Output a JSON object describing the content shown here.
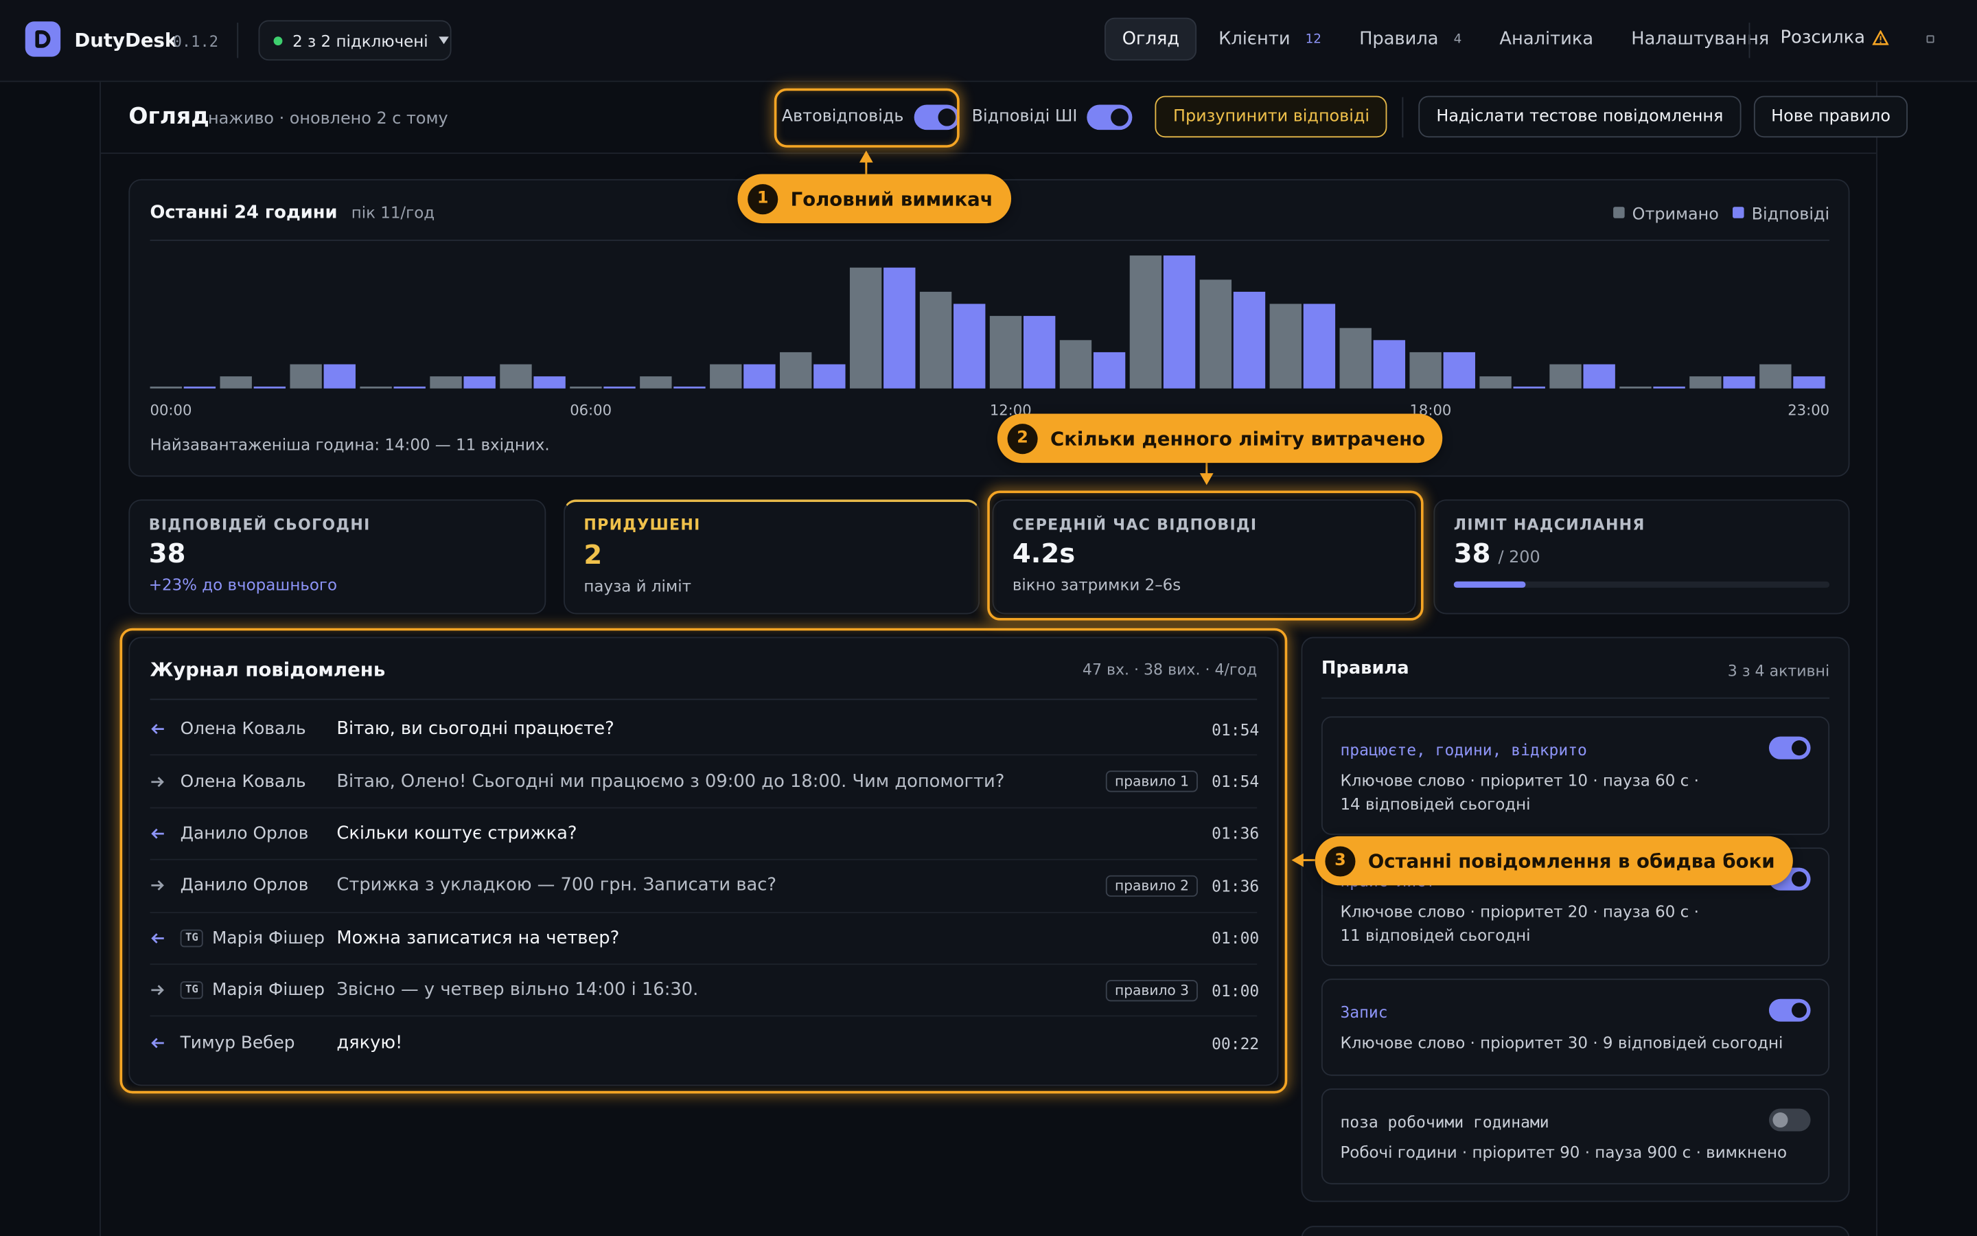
{
  "nav": {
    "brand": "DutyDesk",
    "version": "0.1.2",
    "connection": "2 з 2 підключені",
    "tabs": [
      {
        "label": "Огляд",
        "active": true
      },
      {
        "label": "Клієнти",
        "badge": "12",
        "badge_highlight": true
      },
      {
        "label": "Правила",
        "badge": "4"
      },
      {
        "label": "Аналітика"
      },
      {
        "label": "Налаштування"
      }
    ],
    "broadcast": "Розсилка"
  },
  "header": {
    "title": "Огляд",
    "status": "наживо · оновлено 2 с тому",
    "toggles": [
      {
        "label": "Автовідповідь",
        "on": true
      },
      {
        "label": "Відповіді ШІ",
        "on": true
      }
    ],
    "buttons": [
      "Призупинити відповіді",
      "Надіслати тестове повідомлення",
      "Нове правило"
    ]
  },
  "chart_data": {
    "type": "bar",
    "title": "Останні 24 години",
    "subtitle": "пік 11/год",
    "categories": [
      "00:00",
      null,
      null,
      null,
      null,
      null,
      "06:00",
      null,
      null,
      null,
      null,
      null,
      "12:00",
      null,
      null,
      null,
      null,
      null,
      "18:00",
      null,
      null,
      null,
      null,
      "23:00"
    ],
    "series": [
      {
        "name": "Отримано",
        "color": "#69747e",
        "values": [
          0,
          1,
          2,
          0,
          1,
          2,
          0,
          1,
          2,
          3,
          10,
          8,
          6,
          4,
          11,
          9,
          7,
          5,
          3,
          1,
          2,
          0,
          1,
          2
        ]
      },
      {
        "name": "Відповіді",
        "color": "#7b83f5",
        "values": [
          0,
          0,
          2,
          0,
          1,
          1,
          0,
          0,
          2,
          2,
          10,
          7,
          6,
          3,
          11,
          8,
          7,
          4,
          3,
          0,
          2,
          0,
          1,
          1
        ]
      }
    ],
    "ylim": [
      0,
      12
    ],
    "legend": "top-right",
    "footnote": "Найзавантаженіша година: 14:00 — 11 вхідних."
  },
  "stats": [
    {
      "label": "ВІДПОВІДЕЙ СЬОГОДНІ",
      "value": "38",
      "note": "+23% до вчорашнього"
    },
    {
      "label": "ПРИДУШЕНІ",
      "value": "2",
      "note": "пауза й ліміт"
    },
    {
      "label": "СЕРЕДНІЙ ЧАС ВІДПОВІДІ",
      "value": "4.2s",
      "note": "вікно затримки 2–6s"
    },
    {
      "label": "ЛІМІТ НАДСИЛАННЯ",
      "value": 38,
      "limit": 200,
      "limit_label": "/ 200"
    }
  ],
  "log": {
    "title": "Журнал повідомлень",
    "meta": "47 вх. · 38 вих. · 4/год",
    "rows": [
      {
        "dir": "in",
        "name": "Олена Коваль",
        "text": "Вітаю, ви сьогодні працюєте?",
        "time": "01:54"
      },
      {
        "dir": "out",
        "name": "Олена Коваль",
        "text": "Вітаю, Олено! Сьогодні ми працюємо з 09:00 до 18:00. Чим допомогти?",
        "rule": "правило 1",
        "time": "01:54"
      },
      {
        "dir": "in",
        "name": "Данило Орлов",
        "text": "Скільки коштує стрижка?",
        "time": "01:36"
      },
      {
        "dir": "out",
        "name": "Данило Орлов",
        "text": "Стрижка з укладкою — 700 грн. Записати вас?",
        "rule": "правило 2",
        "time": "01:36"
      },
      {
        "dir": "in",
        "channel": "TG",
        "name": "Марія Фішер",
        "text": "Можна записатися на четвер?",
        "time": "01:00"
      },
      {
        "dir": "out",
        "channel": "TG",
        "name": "Марія Фішер",
        "text": "Звісно — у четвер вільно 14:00 і 16:30.",
        "rule": "правило 3",
        "time": "01:00"
      },
      {
        "dir": "in",
        "name": "Тимур Вебер",
        "text": "дякую!",
        "time": "00:22"
      }
    ]
  },
  "rules": {
    "title": "Правила",
    "meta": "3 з 4 активні",
    "items": [
      {
        "keyword": "працюєте, години, відкрито",
        "desc": "Ключове слово · пріоритет 10 · пауза 60 с · 14 відповідей сьогодні",
        "on": true
      },
      {
        "keyword": "прайс-лист",
        "desc": "Ключове слово · пріоритет 20 · пауза 60 с · 11 відповідей сьогодні",
        "on": true
      },
      {
        "keyword": "Запис",
        "desc": "Ключове слово · пріоритет 30 · 9 відповідей сьогодні",
        "on": true
      },
      {
        "keyword": "поза робочими годинами",
        "desc": "Робочі години · пріоритет 90 · пауза 900 с · вимкнено",
        "on": false
      }
    ]
  },
  "callouts": [
    {
      "number": 1,
      "text": "Головний вимикач"
    },
    {
      "number": 2,
      "text": "Скільки денного ліміту витрачено"
    },
    {
      "number": 3,
      "text": "Останні повідомлення в обидва боки"
    }
  ]
}
